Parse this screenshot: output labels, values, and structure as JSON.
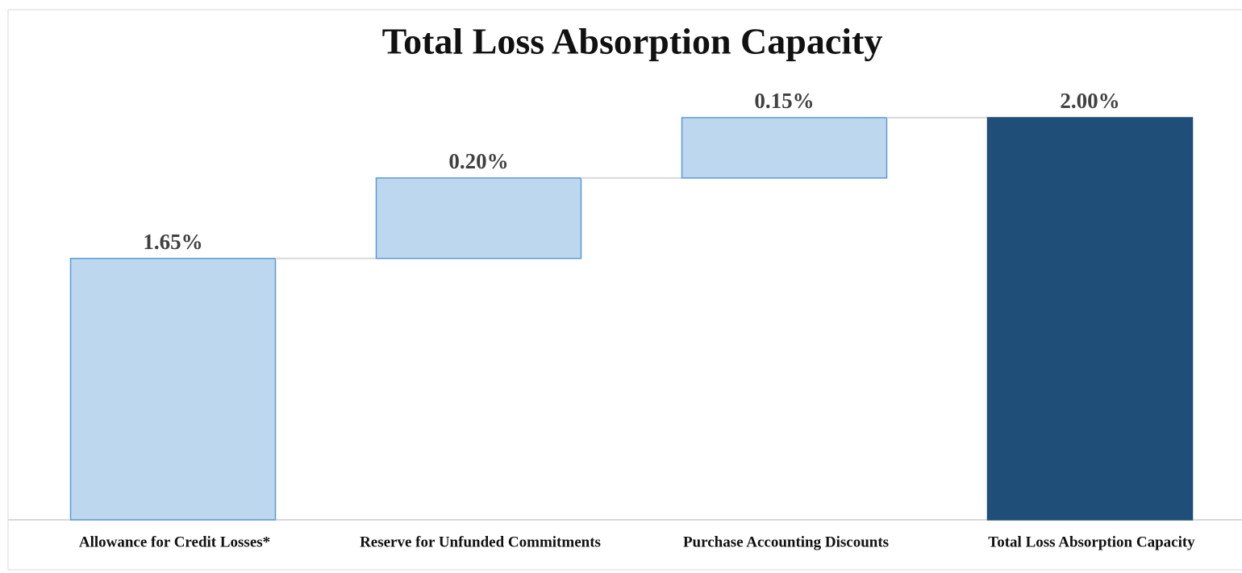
{
  "chart_data": {
    "type": "waterfall",
    "title": "Total Loss Absorption Capacity",
    "categories": [
      "Allowance for Credit Losses*",
      "Reserve for Unfunded Commitments",
      "Purchase Accounting Discounts",
      "Total Loss Absorption Capacity"
    ],
    "values": [
      1.65,
      0.2,
      0.15,
      2.0
    ],
    "value_labels": [
      "1.65%",
      "0.20%",
      "0.15%",
      "2.00%"
    ],
    "totals": [
      false,
      false,
      false,
      true
    ],
    "color": "#bdd7ee",
    "edge_color": "#5b9bd5",
    "total_color": "#1f4e79",
    "ylim": [
      1,
      2
    ]
  }
}
